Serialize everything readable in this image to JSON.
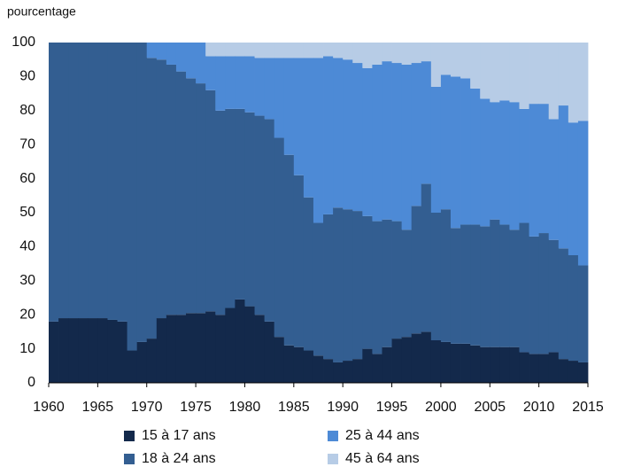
{
  "chart_data": {
    "type": "stacked_step_area",
    "y_label": "pourcentage",
    "x": [
      1960,
      1961,
      1962,
      1963,
      1964,
      1965,
      1966,
      1967,
      1968,
      1969,
      1970,
      1971,
      1972,
      1973,
      1974,
      1975,
      1976,
      1977,
      1978,
      1979,
      1980,
      1981,
      1982,
      1983,
      1984,
      1985,
      1986,
      1987,
      1988,
      1989,
      1990,
      1991,
      1992,
      1993,
      1994,
      1995,
      1996,
      1997,
      1998,
      1999,
      2000,
      2001,
      2002,
      2003,
      2004,
      2005,
      2006,
      2007,
      2008,
      2009,
      2010,
      2011,
      2012,
      2013,
      2014
    ],
    "series": [
      {
        "name": "15 à 17 ans",
        "color": "#13294b",
        "values": [
          18,
          19,
          19,
          19,
          19,
          19,
          18.5,
          18,
          9.5,
          12,
          13,
          19,
          20,
          20,
          20.5,
          20.5,
          21,
          20,
          22,
          24.5,
          22.5,
          20,
          18,
          13.5,
          11,
          10.5,
          9.5,
          8,
          7,
          6,
          6.5,
          7,
          10,
          8.5,
          10.5,
          13,
          13.5,
          14.5,
          15,
          12.5,
          12,
          11.5,
          11.5,
          11,
          10.5,
          10.5,
          10.5,
          10.5,
          9,
          8.5,
          8.5,
          9,
          7,
          6.5,
          6
        ]
      },
      {
        "name": "18 à 24 ans",
        "color": "#335e91",
        "values": [
          82,
          81,
          81,
          81,
          81,
          81,
          81.5,
          82,
          90.5,
          88,
          82.5,
          76,
          73.5,
          71.5,
          69,
          67.5,
          65,
          60,
          58.5,
          56,
          57,
          58.5,
          59.5,
          58.5,
          56,
          50.5,
          45,
          39,
          42.5,
          45.5,
          44.5,
          43.5,
          39,
          39,
          37.5,
          34.5,
          31.5,
          37.5,
          43.5,
          37.5,
          39,
          34,
          35,
          35.5,
          35.5,
          37.5,
          36,
          34.5,
          38,
          34.5,
          35.5,
          33,
          32.5,
          31,
          28.5
        ]
      },
      {
        "name": "25 à 44 ans",
        "color": "#4d8ad6",
        "values": [
          0,
          0,
          0,
          0,
          0,
          0,
          0,
          0,
          0,
          0,
          4.5,
          5,
          6.5,
          8.5,
          10.5,
          12,
          10,
          16,
          15.5,
          15.5,
          16.5,
          17,
          18,
          23.5,
          28.5,
          34.5,
          41,
          48.5,
          46.5,
          44,
          44,
          43.5,
          43.5,
          46,
          46.5,
          46.5,
          48.5,
          42,
          36,
          37,
          39.5,
          44.5,
          43,
          40,
          37.5,
          34.5,
          36.5,
          37.5,
          33.5,
          39,
          38,
          35.5,
          42,
          39,
          42.5
        ]
      },
      {
        "name": "45 à 64 ans",
        "color": "#b7cce6",
        "values": [
          0,
          0,
          0,
          0,
          0,
          0,
          0,
          0,
          0,
          0,
          0,
          0,
          0,
          0,
          0,
          0,
          4,
          4,
          4,
          4,
          4,
          4.5,
          4.5,
          4.5,
          4.5,
          4.5,
          4.5,
          4.5,
          4,
          4.5,
          5,
          6,
          7.5,
          6.5,
          5.5,
          6,
          6.5,
          6,
          5.5,
          13,
          9.5,
          10,
          10.5,
          13.5,
          16.5,
          17.5,
          17,
          17.5,
          19.5,
          18,
          18,
          22.5,
          18.5,
          23.5,
          23
        ]
      }
    ],
    "xlim": [
      1960,
      2015
    ],
    "xticks": [
      1960,
      1965,
      1970,
      1975,
      1980,
      1985,
      1990,
      1995,
      2000,
      2005,
      2010,
      2015
    ],
    "ylim": [
      0,
      100
    ],
    "yticks": [
      0,
      10,
      20,
      30,
      40,
      50,
      60,
      70,
      80,
      90,
      100
    ],
    "legend": "bottom"
  }
}
